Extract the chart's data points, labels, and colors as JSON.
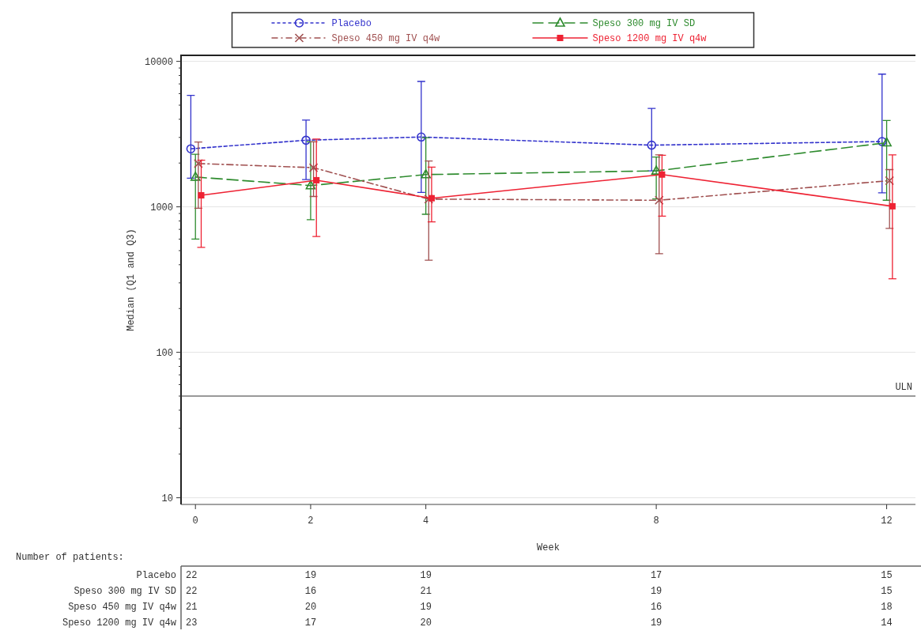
{
  "chart_data": {
    "type": "line",
    "xlabel": "Week",
    "ylabel": "Median (Q1 and Q3)",
    "log": "y",
    "grid": "y",
    "legend": "top",
    "xlim": [
      -0.25,
      12.5
    ],
    "xticks": [
      0,
      2,
      4,
      8,
      12
    ],
    "ylim": [
      9,
      11000
    ],
    "yticks": [
      10,
      {
        "value": 20,
        "label": null
      },
      {
        "value": 30,
        "label": null
      },
      {
        "value": 40,
        "label": null
      },
      {
        "value": 50,
        "label": null
      },
      {
        "value": 60,
        "label": null
      },
      {
        "value": 70,
        "label": null
      },
      {
        "value": 80,
        "label": null
      },
      {
        "value": 90,
        "label": null
      },
      100,
      {
        "value": 200,
        "label": null
      },
      {
        "value": 300,
        "label": null
      },
      {
        "value": 400,
        "label": null
      },
      {
        "value": 500,
        "label": null
      },
      {
        "value": 600,
        "label": null
      },
      {
        "value": 700,
        "label": null
      },
      {
        "value": 800,
        "label": null
      },
      {
        "value": 900,
        "label": null
      },
      1000,
      {
        "value": 2000,
        "label": null
      },
      {
        "value": 3000,
        "label": null
      },
      {
        "value": 4000,
        "label": null
      },
      {
        "value": 5000,
        "label": null
      },
      {
        "value": 6000,
        "label": null
      },
      {
        "value": 7000,
        "label": null
      },
      {
        "value": 8000,
        "label": null
      },
      {
        "value": 9000,
        "label": null
      },
      10000
    ],
    "series": [
      {
        "name": "Placebo",
        "color": "#3333cc",
        "line_style": "dotted",
        "marker": "circle",
        "x": [
          -0.08,
          1.92,
          3.92,
          7.92,
          11.92
        ],
        "values": [
          2506,
          2870,
          3020,
          2655,
          2810
        ],
        "errors": [
          [
            1574,
            5840
          ],
          [
            1540,
            3950
          ],
          [
            1256,
            7280
          ],
          [
            1767,
            4750
          ],
          [
            1247,
            8170
          ]
        ]
      },
      {
        "name": "Speso 300 mg IV SD",
        "color": "#2e8b2e",
        "line_style": "dashed",
        "marker": "triangle",
        "x": [
          0,
          2,
          4,
          8,
          12
        ],
        "values": [
          1603,
          1400,
          1667,
          1767,
          2760
        ],
        "errors": [
          [
            601,
            2300
          ],
          [
            815,
            2800
          ],
          [
            889,
            2990
          ],
          [
            1133,
            2200
          ],
          [
            1110,
            3920
          ]
        ]
      },
      {
        "name": "Speso 450 mg IV q4w",
        "color": "#a05050",
        "line_style": "dashdot",
        "marker": "cross",
        "x": [
          0.05,
          2.05,
          4.05,
          8.05,
          12.05
        ],
        "values": [
          1985,
          1859,
          1130,
          1110,
          1514
        ],
        "errors": [
          [
            977,
            2790
          ],
          [
            1178,
            2800
          ],
          [
            430,
            2066
          ],
          [
            476,
            2275
          ],
          [
            711,
            1803
          ]
        ]
      },
      {
        "name": "Speso 1200 mg IV q4w",
        "color": "#ee2233",
        "line_style": "solid",
        "marker": "square",
        "x": [
          0.1,
          2.1,
          4.1,
          8.1,
          12.1
        ],
        "values": [
          1200,
          1524,
          1146,
          1667,
          1009
        ],
        "errors": [
          [
            526,
            2090
          ],
          [
            625,
            2925
          ],
          [
            789,
            1874
          ],
          [
            862,
            2260
          ],
          [
            320,
            2275
          ]
        ]
      }
    ],
    "ref_lines": [
      {
        "axis": "y",
        "value": 50,
        "label": "ULN",
        "color": "#333333"
      }
    ],
    "annotations": [
      "Number of patients:",
      "22",
      "19",
      "19",
      "17",
      "15",
      "22",
      "16",
      "21",
      "19",
      "15",
      "21",
      "20",
      "19",
      "16",
      "18",
      "23",
      "17",
      "20",
      "19",
      "14"
    ]
  }
}
